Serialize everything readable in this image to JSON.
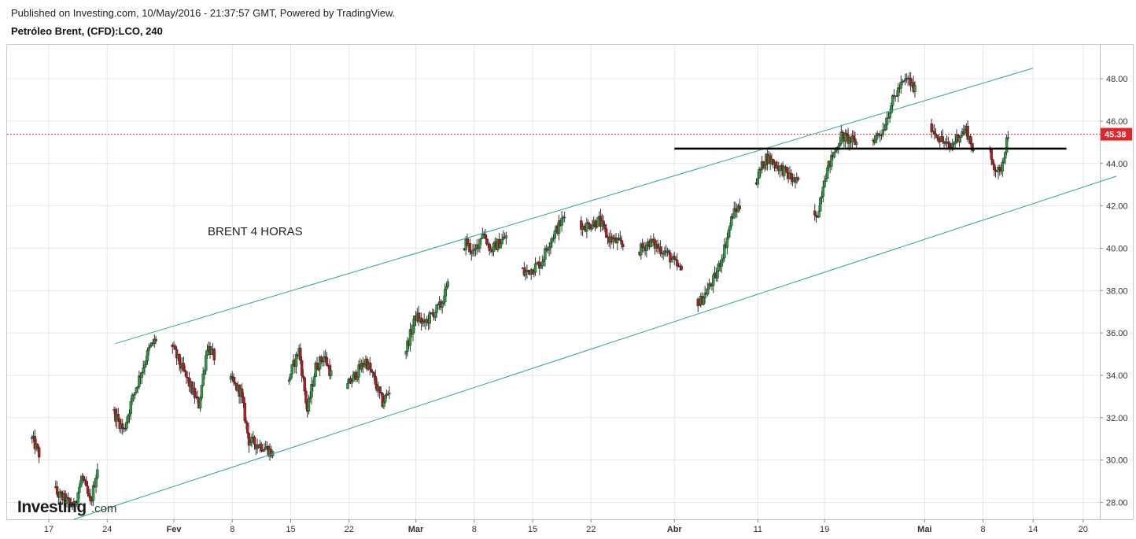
{
  "header": {
    "published": "Published on Investing.com, 10/May/2016 - 21:37:57 GMT, Powered by TradingView.",
    "symbol": "Petróleo Brent, (CFD):LCO, 240"
  },
  "logo": {
    "main": "Investing",
    "sub": ".com"
  },
  "colors": {
    "up": "#2a9d3f",
    "down": "#b51d1d",
    "wick": "#333333",
    "channel": "#26a69a",
    "support": "#000000",
    "price_line": "#e3242b",
    "grid": "#e6e6e6",
    "frame": "#cccccc"
  },
  "chart_data": {
    "type": "candlestick",
    "title": "",
    "annotation": "BRENT 4 HORAS",
    "xlabel": "",
    "ylabel": "",
    "ylim": [
      27.2,
      49.6
    ],
    "y_ticks": [
      "28.00",
      "30.00",
      "32.00",
      "34.00",
      "36.00",
      "38.00",
      "40.00",
      "42.00",
      "44.00",
      "46.00",
      "48.00"
    ],
    "x_ticks": [
      {
        "label": "17",
        "date": "2016-01-17",
        "bold": false
      },
      {
        "label": "24",
        "date": "2016-01-24",
        "bold": false
      },
      {
        "label": "Fev",
        "date": "2016-02-01",
        "bold": true
      },
      {
        "label": "8",
        "date": "2016-02-08",
        "bold": false
      },
      {
        "label": "15",
        "date": "2016-02-15",
        "bold": false
      },
      {
        "label": "22",
        "date": "2016-02-22",
        "bold": false
      },
      {
        "label": "Mar",
        "date": "2016-03-01",
        "bold": true
      },
      {
        "label": "8",
        "date": "2016-03-08",
        "bold": false
      },
      {
        "label": "15",
        "date": "2016-03-15",
        "bold": false
      },
      {
        "label": "22",
        "date": "2016-03-22",
        "bold": false
      },
      {
        "label": "Abr",
        "date": "2016-04-01",
        "bold": true
      },
      {
        "label": "11",
        "date": "2016-04-11",
        "bold": false
      },
      {
        "label": "19",
        "date": "2016-04-19",
        "bold": false
      },
      {
        "label": "Mai",
        "date": "2016-05-01",
        "bold": true
      },
      {
        "label": "8",
        "date": "2016-05-08",
        "bold": false
      },
      {
        "label": "14",
        "date": "2016-05-14",
        "bold": false
      },
      {
        "label": "20",
        "date": "2016-05-20",
        "bold": false
      }
    ],
    "last_price": "45.38",
    "close_path": [
      [
        "2016-01-15",
        31.0
      ],
      [
        "2016-01-18",
        28.4
      ],
      [
        "2016-01-20",
        27.8
      ],
      [
        "2016-01-21",
        29.2
      ],
      [
        "2016-01-22",
        27.9
      ],
      [
        "2016-01-23",
        30.0
      ],
      [
        "2016-01-24",
        32.8
      ],
      [
        "2016-01-26",
        31.4
      ],
      [
        "2016-01-27",
        32.9
      ],
      [
        "2016-01-29",
        35.2
      ],
      [
        "2016-01-30",
        35.8
      ],
      [
        "2016-01-31",
        36.0
      ],
      [
        "2016-02-02",
        34.3
      ],
      [
        "2016-02-04",
        32.6
      ],
      [
        "2016-02-05",
        35.4
      ],
      [
        "2016-02-07",
        34.1
      ],
      [
        "2016-02-09",
        33.2
      ],
      [
        "2016-02-10",
        30.9
      ],
      [
        "2016-02-12",
        30.6
      ],
      [
        "2016-02-13",
        30.2
      ],
      [
        "2016-02-14",
        32.9
      ],
      [
        "2016-02-15",
        34.1
      ],
      [
        "2016-02-16",
        35.2
      ],
      [
        "2016-02-17",
        32.3
      ],
      [
        "2016-02-18",
        34.4
      ],
      [
        "2016-02-19",
        34.9
      ],
      [
        "2016-02-21",
        32.9
      ],
      [
        "2016-02-22",
        33.6
      ],
      [
        "2016-02-24",
        34.7
      ],
      [
        "2016-02-25",
        33.8
      ],
      [
        "2016-02-26",
        32.7
      ],
      [
        "2016-02-28",
        34.1
      ],
      [
        "2016-03-01",
        36.8
      ],
      [
        "2016-03-02",
        36.4
      ],
      [
        "2016-03-03",
        36.9
      ],
      [
        "2016-03-04",
        37.3
      ],
      [
        "2016-03-05",
        38.4
      ],
      [
        "2016-03-07",
        40.3
      ],
      [
        "2016-03-08",
        39.7
      ],
      [
        "2016-03-09",
        40.8
      ],
      [
        "2016-03-10",
        39.9
      ],
      [
        "2016-03-12",
        40.6
      ],
      [
        "2016-03-13",
        39.6
      ],
      [
        "2016-03-14",
        38.8
      ],
      [
        "2016-03-16",
        39.3
      ],
      [
        "2016-03-17",
        40.3
      ],
      [
        "2016-03-19",
        41.6
      ],
      [
        "2016-03-20",
        41.9
      ],
      [
        "2016-03-21",
        41.0
      ],
      [
        "2016-03-23",
        41.3
      ],
      [
        "2016-03-24",
        40.5
      ],
      [
        "2016-03-26",
        40.1
      ],
      [
        "2016-03-27",
        39.6
      ],
      [
        "2016-03-29",
        40.3
      ],
      [
        "2016-03-31",
        39.8
      ],
      [
        "2016-04-02",
        38.8
      ],
      [
        "2016-04-03",
        38.0
      ],
      [
        "2016-04-04",
        37.4
      ],
      [
        "2016-04-06",
        38.7
      ],
      [
        "2016-04-07",
        40.0
      ],
      [
        "2016-04-08",
        41.6
      ],
      [
        "2016-04-10",
        42.5
      ],
      [
        "2016-04-12",
        44.3
      ],
      [
        "2016-04-14",
        43.7
      ],
      [
        "2016-04-15",
        43.3
      ],
      [
        "2016-04-17",
        42.7
      ],
      [
        "2016-04-18",
        41.3
      ],
      [
        "2016-04-19",
        43.4
      ],
      [
        "2016-04-21",
        45.3
      ],
      [
        "2016-04-22",
        45.1
      ],
      [
        "2016-04-24",
        44.8
      ],
      [
        "2016-04-26",
        45.6
      ],
      [
        "2016-04-27",
        46.8
      ],
      [
        "2016-04-28",
        47.6
      ],
      [
        "2016-04-29",
        48.0
      ],
      [
        "2016-04-30",
        47.3
      ],
      [
        "2016-05-02",
        45.6
      ],
      [
        "2016-05-03",
        45.1
      ],
      [
        "2016-05-04",
        44.7
      ],
      [
        "2016-05-05",
        45.3
      ],
      [
        "2016-05-06",
        45.6
      ],
      [
        "2016-05-07",
        44.4
      ],
      [
        "2016-05-08",
        45.9
      ],
      [
        "2016-05-09",
        44.1
      ],
      [
        "2016-05-10",
        43.5
      ],
      [
        "2016-05-11",
        45.4
      ]
    ],
    "lines": [
      {
        "name": "channel-upper",
        "from": [
          "2016-01-25",
          35.5
        ],
        "to": [
          "2016-05-14",
          48.5
        ]
      },
      {
        "name": "channel-lower",
        "from": [
          "2016-01-20",
          27.2
        ],
        "to": [
          "2016-05-24",
          43.4
        ]
      },
      {
        "name": "support",
        "from": [
          "2016-04-01",
          44.7
        ],
        "to": [
          "2016-05-18",
          44.7
        ]
      }
    ],
    "grid": true,
    "y_axis_side": "right"
  }
}
